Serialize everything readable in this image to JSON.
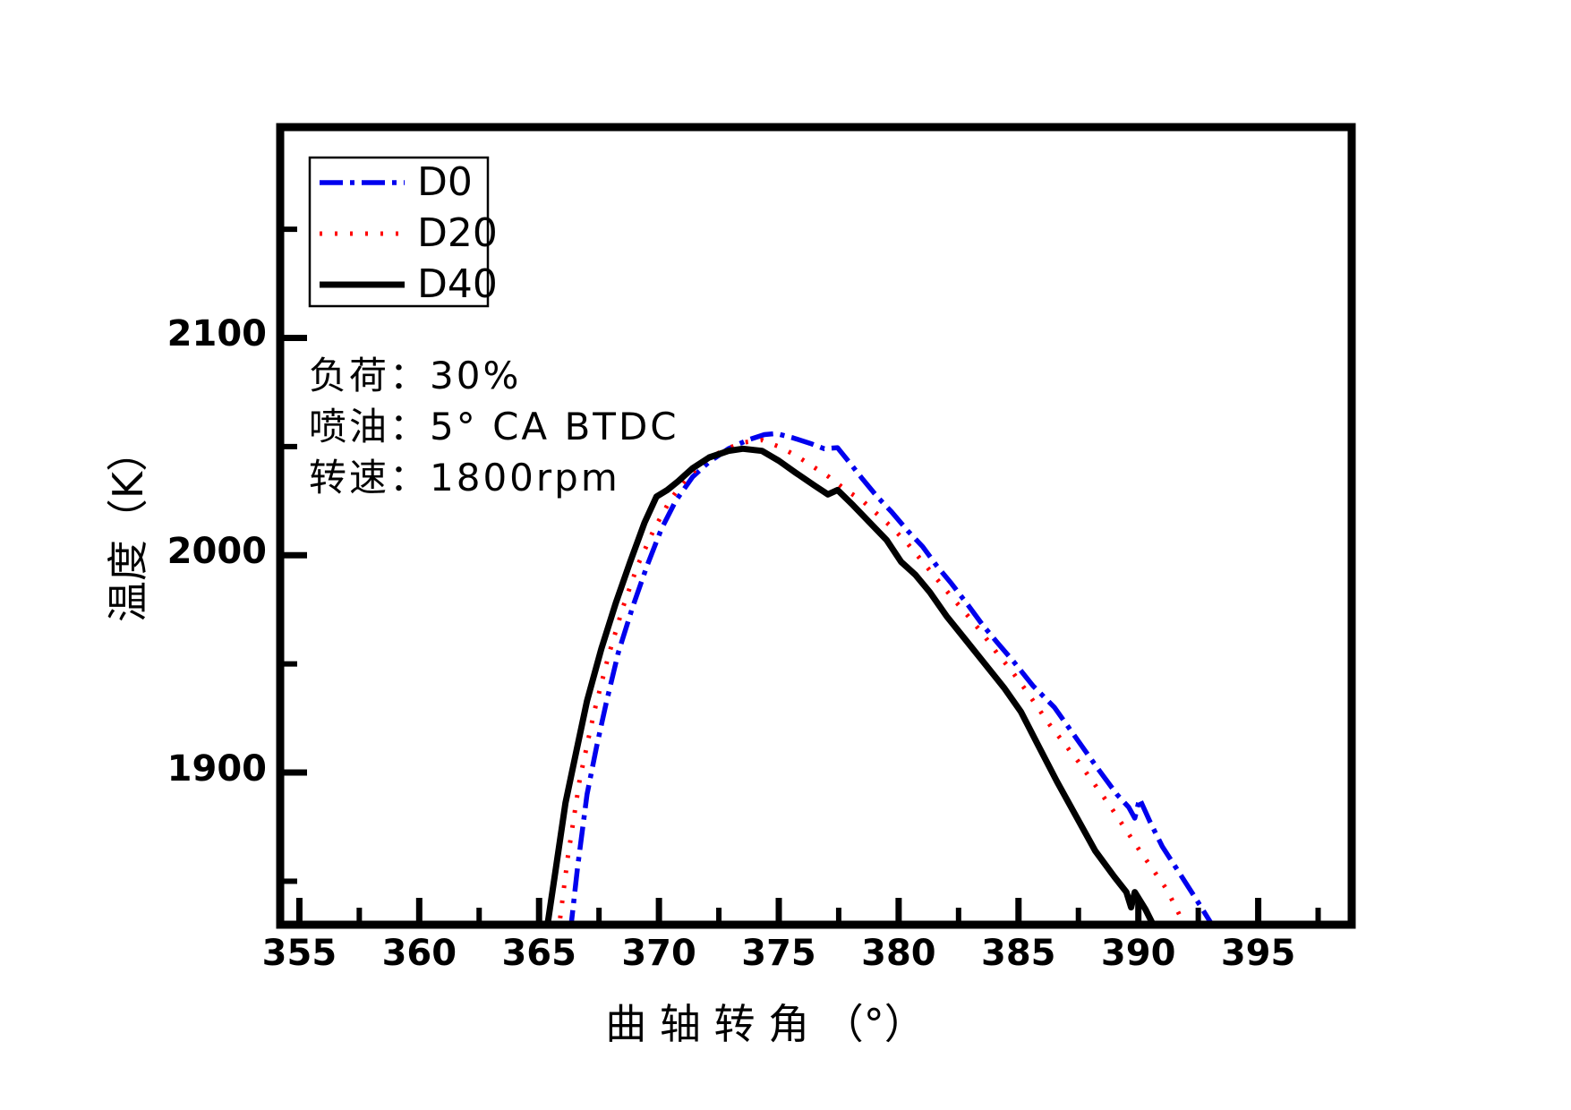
{
  "chart_data": {
    "type": "line",
    "title": "",
    "xlabel": "曲 轴 转 角 （°）",
    "ylabel": "温度（K）",
    "xlim": [
      354.2,
      398.9
    ],
    "ylim": [
      1830,
      2197
    ],
    "x_major_ticks": [
      355,
      360,
      365,
      370,
      375,
      380,
      385,
      390,
      395
    ],
    "x_minor_ticks": [
      357.5,
      362.5,
      367.5,
      372.5,
      377.5,
      382.5,
      387.5,
      392.5,
      397.5
    ],
    "y_major_ticks": [
      1900,
      2000,
      2100
    ],
    "y_minor_ticks": [
      1850,
      1950,
      2050,
      2150
    ],
    "grid": false,
    "legend_position": "upper-left",
    "annotations": [
      "负荷：30%",
      "喷油：5° CA BTDC",
      "转速：1800rpm"
    ],
    "series": [
      {
        "name": "D0",
        "color": "#0000ee",
        "style": "dashdot",
        "points": [
          [
            366.3,
            1826
          ],
          [
            366.6,
            1856
          ],
          [
            367.0,
            1890
          ],
          [
            367.4,
            1912
          ],
          [
            367.8,
            1932
          ],
          [
            368.3,
            1955
          ],
          [
            368.9,
            1976
          ],
          [
            369.5,
            1995
          ],
          [
            370.1,
            2012
          ],
          [
            370.7,
            2025
          ],
          [
            371.4,
            2036
          ],
          [
            372.1,
            2043
          ],
          [
            372.9,
            2049
          ],
          [
            373.7,
            2053
          ],
          [
            374.4,
            2055.5
          ],
          [
            374.9,
            2056
          ],
          [
            375.6,
            2054
          ],
          [
            376.3,
            2051.5
          ],
          [
            376.9,
            2049
          ],
          [
            377.45,
            2049.5
          ],
          [
            378.0,
            2042
          ],
          [
            378.5,
            2035
          ],
          [
            379.1,
            2027
          ],
          [
            379.7,
            2020
          ],
          [
            380.4,
            2011
          ],
          [
            381.0,
            2004
          ],
          [
            381.6,
            1995
          ],
          [
            382.2,
            1987
          ],
          [
            382.9,
            1977
          ],
          [
            383.5,
            1968
          ],
          [
            384.1,
            1960
          ],
          [
            384.8,
            1951
          ],
          [
            385.6,
            1940
          ],
          [
            386.5,
            1930
          ],
          [
            387.4,
            1916
          ],
          [
            388.3,
            1902
          ],
          [
            389.1,
            1890
          ],
          [
            389.6,
            1884
          ],
          [
            389.85,
            1879
          ],
          [
            390.05,
            1888
          ],
          [
            390.5,
            1877
          ],
          [
            391.0,
            1866
          ],
          [
            391.7,
            1854
          ],
          [
            392.4,
            1842
          ],
          [
            393.3,
            1826
          ]
        ]
      },
      {
        "name": "D20",
        "color": "#ff0000",
        "style": "dotted",
        "points": [
          [
            365.8,
            1826
          ],
          [
            366.2,
            1861
          ],
          [
            366.7,
            1897
          ],
          [
            367.3,
            1928
          ],
          [
            367.9,
            1954
          ],
          [
            368.5,
            1976
          ],
          [
            369.1,
            1995
          ],
          [
            369.8,
            2012
          ],
          [
            370.5,
            2026
          ],
          [
            371.2,
            2036
          ],
          [
            372.0,
            2044
          ],
          [
            372.8,
            2049
          ],
          [
            373.6,
            2052
          ],
          [
            374.3,
            2053
          ],
          [
            375.0,
            2050
          ],
          [
            375.7,
            2046
          ],
          [
            376.4,
            2041
          ],
          [
            377.1,
            2036
          ],
          [
            377.8,
            2030
          ],
          [
            378.5,
            2025
          ],
          [
            379.1,
            2019
          ],
          [
            379.7,
            2013
          ],
          [
            380.4,
            2005
          ],
          [
            381.0,
            1997
          ],
          [
            381.6,
            1989
          ],
          [
            382.2,
            1981
          ],
          [
            382.9,
            1972
          ],
          [
            383.5,
            1964
          ],
          [
            384.1,
            1955
          ],
          [
            384.7,
            1947
          ],
          [
            385.3,
            1938
          ],
          [
            386.3,
            1922
          ],
          [
            387.5,
            1905
          ],
          [
            388.8,
            1885
          ],
          [
            390.0,
            1865
          ],
          [
            391.2,
            1846
          ],
          [
            392.1,
            1826
          ]
        ]
      },
      {
        "name": "D40",
        "color": "#000000",
        "style": "solid",
        "points": [
          [
            365.3,
            1826
          ],
          [
            365.7,
            1856
          ],
          [
            366.1,
            1886
          ],
          [
            366.5,
            1907
          ],
          [
            367.0,
            1933
          ],
          [
            367.6,
            1957
          ],
          [
            368.2,
            1978
          ],
          [
            368.8,
            1997
          ],
          [
            369.4,
            2015
          ],
          [
            369.9,
            2027
          ],
          [
            370.35,
            2030
          ],
          [
            370.8,
            2034
          ],
          [
            371.4,
            2040
          ],
          [
            372.1,
            2045
          ],
          [
            372.9,
            2048
          ],
          [
            373.5,
            2049
          ],
          [
            374.3,
            2048
          ],
          [
            375.0,
            2043.5
          ],
          [
            375.7,
            2038
          ],
          [
            376.5,
            2032
          ],
          [
            377.05,
            2028
          ],
          [
            377.45,
            2030
          ],
          [
            378.1,
            2023
          ],
          [
            378.8,
            2015
          ],
          [
            379.5,
            2007
          ],
          [
            380.1,
            1997
          ],
          [
            380.7,
            1991
          ],
          [
            381.3,
            1983
          ],
          [
            382.0,
            1972
          ],
          [
            382.8,
            1961
          ],
          [
            383.6,
            1950
          ],
          [
            384.4,
            1939
          ],
          [
            385.1,
            1928
          ],
          [
            385.8,
            1913
          ],
          [
            386.6,
            1896
          ],
          [
            387.4,
            1880
          ],
          [
            388.2,
            1864
          ],
          [
            389.0,
            1852
          ],
          [
            389.5,
            1845
          ],
          [
            389.7,
            1838
          ],
          [
            389.85,
            1845
          ],
          [
            390.3,
            1837
          ],
          [
            390.8,
            1826
          ]
        ]
      }
    ]
  }
}
